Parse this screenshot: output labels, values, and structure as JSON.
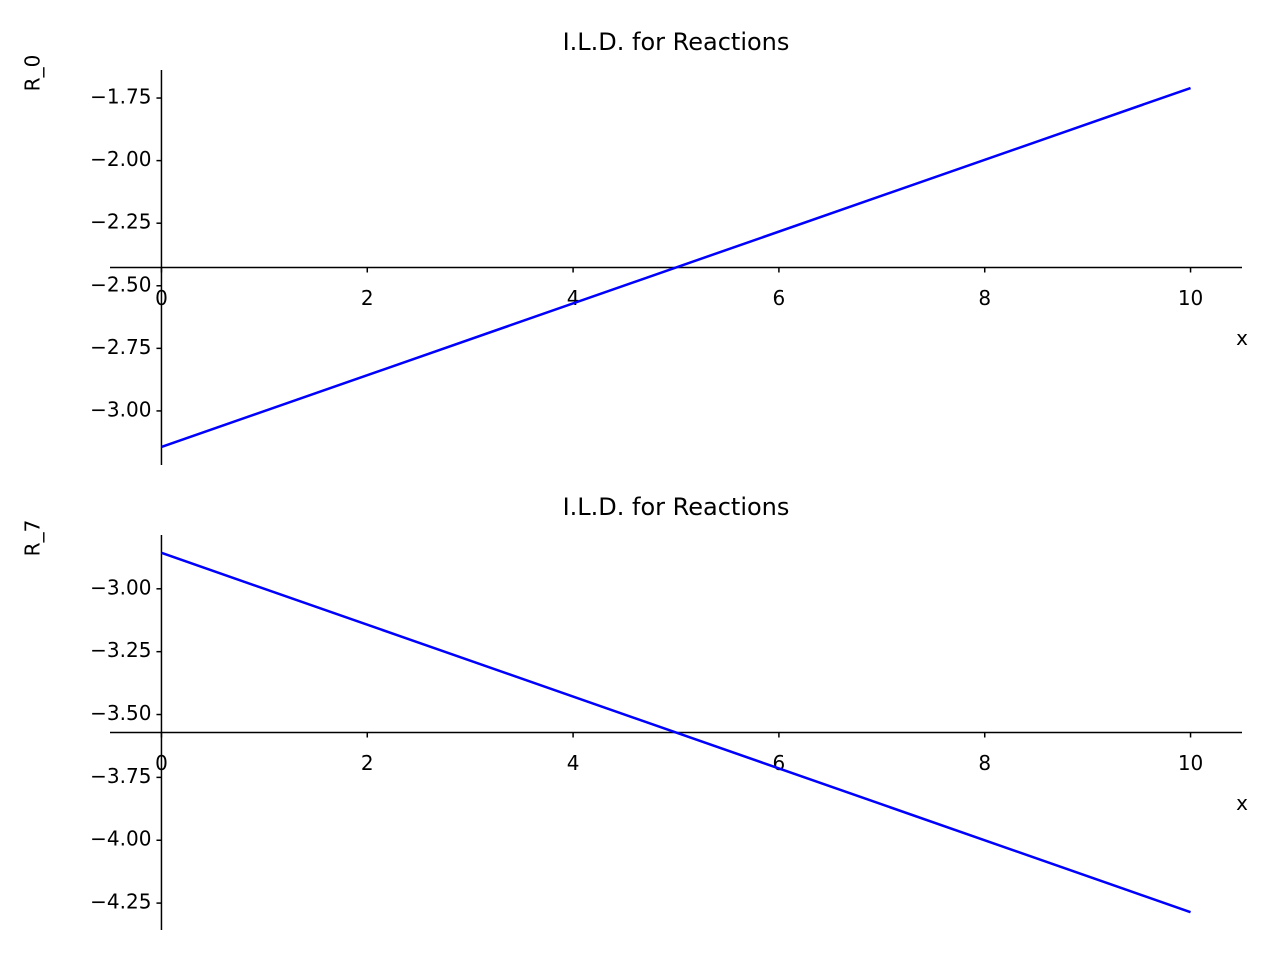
{
  "chart_data": [
    {
      "type": "line",
      "title": "I.L.D. for Reactions",
      "xlabel": "x",
      "ylabel": "R_0",
      "x": [
        0,
        10
      ],
      "values": [
        -3.144,
        -1.71
      ],
      "color": "#0000ff",
      "xlim": [
        -0.5,
        10.5
      ],
      "ylim": [
        -3.216,
        -1.638
      ],
      "xticks": [
        0,
        2,
        4,
        6,
        8,
        10
      ],
      "yticks": [
        {
          "value": -3.0,
          "label": "−3.00"
        },
        {
          "value": -2.75,
          "label": "−2.75"
        },
        {
          "value": -2.5,
          "label": "−2.50"
        },
        {
          "value": -2.25,
          "label": "−2.25"
        },
        {
          "value": -2.0,
          "label": "−2.00"
        },
        {
          "value": -1.75,
          "label": "−1.75"
        }
      ]
    },
    {
      "type": "line",
      "title": "I.L.D. for Reactions",
      "xlabel": "x",
      "ylabel": "R_7",
      "x": [
        0,
        10
      ],
      "values": [
        -2.857,
        -4.286
      ],
      "color": "#0000ff",
      "xlim": [
        -0.5,
        10.5
      ],
      "ylim": [
        -4.357,
        -2.786
      ],
      "xticks": [
        0,
        2,
        4,
        6,
        8,
        10
      ],
      "yticks": [
        {
          "value": -4.25,
          "label": "−4.25"
        },
        {
          "value": -4.0,
          "label": "−4.00"
        },
        {
          "value": -3.75,
          "label": "−3.75"
        },
        {
          "value": -3.5,
          "label": "−3.50"
        },
        {
          "value": -3.25,
          "label": "−3.25"
        },
        {
          "value": -3.0,
          "label": "−3.00"
        }
      ]
    }
  ]
}
